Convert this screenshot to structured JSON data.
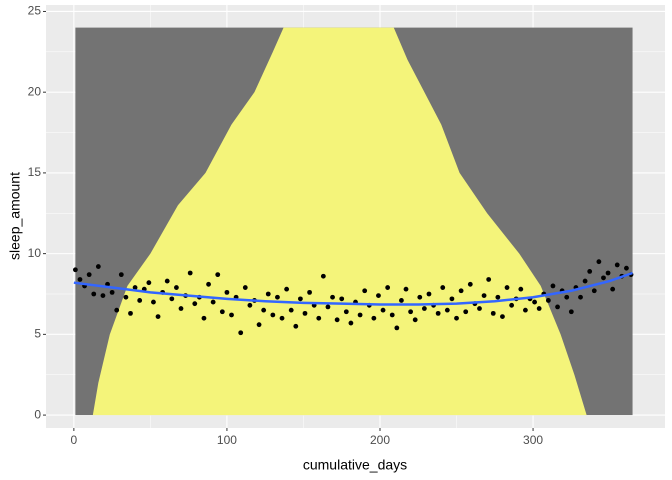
{
  "chart_data": {
    "type": "scatter",
    "x_label": "cumulative_days",
    "y_label": "sleep_amount",
    "xlim": [
      -18.2,
      386.2
    ],
    "ylim": [
      -0.8,
      25.4
    ],
    "xticks": [
      0,
      100,
      200,
      300
    ],
    "yticks": [
      0,
      5,
      10,
      15,
      20,
      25
    ],
    "grid": true,
    "panel_color": "#ebebeb",
    "night": {
      "color": "#737373",
      "x": [
        1,
        365
      ],
      "y": [
        0,
        24
      ]
    },
    "daylight": {
      "color": "#f4f47a",
      "x": [
        12.4,
        16,
        23.5,
        35,
        50,
        68,
        86,
        103,
        118,
        130,
        137,
        209,
        218,
        229,
        240,
        252,
        270,
        291,
        305,
        318,
        327,
        335
      ],
      "y": [
        0,
        2,
        5,
        8,
        10,
        13,
        15,
        18,
        20,
        22.5,
        24,
        24,
        22,
        20,
        18,
        15,
        12.5,
        10,
        8,
        5,
        2.5,
        0
      ]
    },
    "smooth": {
      "color": "#3366ff",
      "x": [
        0,
        25,
        50,
        75,
        100,
        125,
        150,
        175,
        200,
        225,
        250,
        275,
        300,
        325,
        350,
        365
      ],
      "y": [
        8.2,
        7.9,
        7.6,
        7.4,
        7.2,
        7.05,
        6.95,
        6.9,
        6.85,
        6.85,
        6.9,
        7.05,
        7.3,
        7.7,
        8.3,
        8.8
      ]
    },
    "x": [
      1,
      4,
      7,
      10,
      13,
      16,
      19,
      22,
      25,
      28,
      31,
      34,
      37,
      40,
      43,
      46,
      49,
      52,
      55,
      58,
      61,
      64,
      67,
      70,
      73,
      76,
      79,
      82,
      85,
      88,
      91,
      94,
      97,
      100,
      103,
      106,
      109,
      112,
      115,
      118,
      121,
      124,
      127,
      130,
      133,
      136,
      139,
      142,
      145,
      148,
      151,
      154,
      157,
      160,
      163,
      166,
      169,
      172,
      175,
      178,
      181,
      184,
      187,
      190,
      193,
      196,
      199,
      202,
      205,
      208,
      211,
      214,
      217,
      220,
      223,
      226,
      229,
      232,
      235,
      238,
      241,
      244,
      247,
      250,
      253,
      256,
      259,
      262,
      265,
      268,
      271,
      274,
      277,
      280,
      283,
      286,
      289,
      292,
      295,
      298,
      301,
      304,
      307,
      310,
      313,
      316,
      319,
      322,
      325,
      328,
      331,
      334,
      337,
      340,
      343,
      346,
      349,
      352,
      355,
      358,
      361,
      364
    ],
    "series": [
      {
        "color": "#000000",
        "values": [
          9.0,
          8.4,
          8.0,
          8.7,
          7.5,
          9.2,
          7.4,
          8.1,
          7.6,
          6.5,
          8.7,
          7.3,
          6.3,
          7.9,
          7.1,
          7.8,
          8.2,
          7.0,
          6.1,
          7.6,
          8.3,
          7.2,
          7.9,
          6.6,
          7.4,
          8.8,
          6.9,
          7.3,
          6.0,
          8.1,
          7.0,
          8.7,
          6.4,
          7.6,
          6.2,
          7.3,
          5.1,
          7.9,
          6.8,
          7.1,
          5.6,
          6.5,
          7.5,
          6.2,
          7.3,
          6.0,
          7.8,
          6.5,
          5.5,
          7.2,
          6.3,
          7.6,
          6.8,
          6.0,
          8.6,
          6.7,
          7.3,
          5.9,
          7.2,
          6.4,
          5.7,
          7.0,
          6.2,
          7.7,
          6.8,
          6.0,
          7.4,
          6.5,
          7.9,
          6.2,
          5.4,
          7.1,
          7.8,
          6.4,
          5.9,
          7.3,
          6.6,
          7.5,
          6.8,
          6.3,
          7.9,
          6.5,
          7.2,
          6.0,
          7.7,
          6.4,
          8.1,
          6.9,
          6.6,
          7.4,
          8.4,
          6.3,
          7.3,
          6.1,
          7.9,
          6.8,
          7.2,
          7.8,
          6.5,
          7.2,
          7.0,
          6.6,
          7.5,
          7.1,
          8.0,
          6.7,
          7.7,
          7.3,
          6.4,
          7.9,
          7.3,
          8.3,
          8.9,
          7.7,
          9.5,
          8.5,
          8.8,
          7.8,
          9.3,
          8.6,
          9.1,
          8.7
        ]
      }
    ]
  }
}
